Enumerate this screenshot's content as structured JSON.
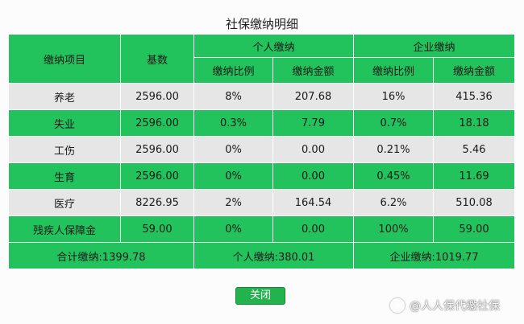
{
  "title": "社保缴纳明细",
  "headers": {
    "item": "缴纳项目",
    "base": "基数",
    "personal": "个人缴纳",
    "company": "企业缴纳",
    "personal_rate": "缴纳比例",
    "personal_amount": "缴纳金额",
    "company_rate": "缴纳比例",
    "company_amount": "缴纳金额"
  },
  "rows": [
    {
      "item": "养老",
      "base": "2596.00",
      "p_rate": "8%",
      "p_amount": "207.68",
      "c_rate": "16%",
      "c_amount": "415.36"
    },
    {
      "item": "失业",
      "base": "2596.00",
      "p_rate": "0.3%",
      "p_amount": "7.79",
      "c_rate": "0.7%",
      "c_amount": "18.18"
    },
    {
      "item": "工伤",
      "base": "2596.00",
      "p_rate": "0%",
      "p_amount": "0.00",
      "c_rate": "0.21%",
      "c_amount": "5.46"
    },
    {
      "item": "生育",
      "base": "2596.00",
      "p_rate": "0%",
      "p_amount": "0.00",
      "c_rate": "0.45%",
      "c_amount": "11.69"
    },
    {
      "item": "医疗",
      "base": "8226.95",
      "p_rate": "2%",
      "p_amount": "164.54",
      "c_rate": "6.2%",
      "c_amount": "510.08"
    },
    {
      "item": "残疾人保障金",
      "base": "59.00",
      "p_rate": "0%",
      "p_amount": "0.00",
      "c_rate": "100%",
      "c_amount": "59.00"
    }
  ],
  "totals": {
    "total": "合计缴纳:1399.78",
    "personal": "个人缴纳:380.01",
    "company": "企业缴纳:1019.77"
  },
  "close_label": "关闭",
  "watermark": "@人人保代缴社保",
  "colors": {
    "green": "#22c35c",
    "gray": "#e6e6e6",
    "button": "#22b34f"
  }
}
